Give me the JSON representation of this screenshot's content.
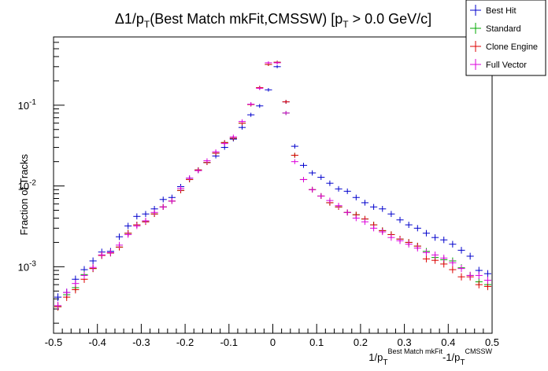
{
  "chart_data": {
    "type": "scatter",
    "title": "Δ1/p",
    "title_sub": "T",
    "title_rest": "(Best Match mkFit,CMSSW) [p",
    "title_sub2": "T",
    "title_tail": " > 0.0 GeV/c]",
    "xlabel": "1/p",
    "xlabel_sub": "T",
    "xlabel_sup": "Best Match mkFit",
    "xlabel_mid": "-1/p",
    "xlabel_sub2": "T",
    "xlabel_sup2": "CMSSW",
    "ylabel": "Fraction of Tracks",
    "xlim": [
      -0.5,
      0.5
    ],
    "ylim": [
      0.00015,
      0.7
    ],
    "yscale": "log",
    "grid": false,
    "legend_position": "top-right",
    "x_ticks": [
      -0.5,
      -0.4,
      -0.3,
      -0.2,
      -0.1,
      0,
      0.1,
      0.2,
      0.3,
      0.4,
      0.5
    ],
    "x_tick_labels": [
      "-0.5",
      "-0.4",
      "-0.3",
      "-0.2",
      "-0.1",
      "0",
      "0.1",
      "0.2",
      "0.3",
      "0.4",
      "0.5"
    ],
    "y_ticks": [
      0.001,
      0.01,
      0.1
    ],
    "y_tick_labels": [
      {
        "base": "10",
        "exp": "-3"
      },
      {
        "base": "10",
        "exp": "-2"
      },
      {
        "base": "10",
        "exp": "-1"
      }
    ],
    "bin_width": 0.02,
    "x": [
      -0.49,
      -0.47,
      -0.45,
      -0.43,
      -0.41,
      -0.39,
      -0.37,
      -0.35,
      -0.33,
      -0.31,
      -0.29,
      -0.27,
      -0.25,
      -0.23,
      -0.21,
      -0.19,
      -0.17,
      -0.15,
      -0.13,
      -0.11,
      -0.09,
      -0.07,
      -0.05,
      -0.03,
      -0.01,
      0.01,
      0.03,
      0.05,
      0.07,
      0.09,
      0.11,
      0.13,
      0.15,
      0.17,
      0.19,
      0.21,
      0.23,
      0.25,
      0.27,
      0.29,
      0.31,
      0.33,
      0.35,
      0.37,
      0.39,
      0.41,
      0.43,
      0.45,
      0.47,
      0.49
    ],
    "series": [
      {
        "name": "Best Hit",
        "color": "#0000cc",
        "values": [
          0.00042,
          0.00048,
          0.0007,
          0.00092,
          0.00118,
          0.00152,
          0.00155,
          0.00235,
          0.0032,
          0.0042,
          0.0045,
          0.0052,
          0.0068,
          0.0072,
          0.0098,
          0.0125,
          0.0155,
          0.0195,
          0.0235,
          0.03,
          0.038,
          0.053,
          0.076,
          0.098,
          0.155,
          0.3,
          0.11,
          0.031,
          0.018,
          0.0145,
          0.0128,
          0.0108,
          0.0092,
          0.0086,
          0.0072,
          0.0062,
          0.0055,
          0.0052,
          0.0045,
          0.0038,
          0.0033,
          0.003,
          0.0026,
          0.0023,
          0.00215,
          0.0019,
          0.0016,
          0.00135,
          0.0009,
          0.00082
        ]
      },
      {
        "name": "Standard",
        "color": "#00aa00",
        "values": [
          0.00032,
          0.00045,
          0.00055,
          0.0008,
          0.00095,
          0.00138,
          0.00148,
          0.00175,
          0.0026,
          0.0033,
          0.0036,
          0.0045,
          0.0055,
          0.0065,
          0.0088,
          0.012,
          0.0158,
          0.0195,
          0.0255,
          0.0345,
          0.039,
          0.06,
          0.102,
          0.165,
          0.32,
          0.34,
          0.08,
          0.024,
          0.012,
          0.009,
          0.0075,
          0.0062,
          0.0055,
          0.0047,
          0.0044,
          0.0039,
          0.0033,
          0.0028,
          0.0025,
          0.0022,
          0.002,
          0.0018,
          0.00155,
          0.0013,
          0.00122,
          0.00118,
          0.00097,
          0.00078,
          0.00065,
          0.0006
        ]
      },
      {
        "name": "Clone Engine",
        "color": "#dd0000",
        "values": [
          0.00032,
          0.00042,
          0.00052,
          0.0007,
          0.00095,
          0.00138,
          0.00148,
          0.00175,
          0.0026,
          0.0033,
          0.0036,
          0.0045,
          0.0055,
          0.0065,
          0.0088,
          0.012,
          0.0158,
          0.0195,
          0.0255,
          0.0345,
          0.039,
          0.06,
          0.102,
          0.165,
          0.32,
          0.34,
          0.11,
          0.024,
          0.012,
          0.009,
          0.0075,
          0.0062,
          0.0055,
          0.0047,
          0.0044,
          0.0039,
          0.0033,
          0.0028,
          0.0025,
          0.0022,
          0.002,
          0.0018,
          0.00125,
          0.0012,
          0.00108,
          0.00092,
          0.00075,
          0.00075,
          0.0006,
          0.00057
        ]
      },
      {
        "name": "Full Vector",
        "color": "#dd00dd",
        "values": [
          0.00033,
          0.00048,
          0.00062,
          0.00078,
          0.00098,
          0.0014,
          0.0015,
          0.00185,
          0.0025,
          0.0032,
          0.0037,
          0.0047,
          0.0055,
          0.0065,
          0.0093,
          0.0125,
          0.0155,
          0.0205,
          0.0265,
          0.0335,
          0.0405,
          0.063,
          0.103,
          0.162,
          0.335,
          0.335,
          0.08,
          0.02,
          0.012,
          0.009,
          0.0075,
          0.0066,
          0.0057,
          0.0047,
          0.004,
          0.0036,
          0.003,
          0.0027,
          0.0023,
          0.0021,
          0.0019,
          0.0017,
          0.0015,
          0.0014,
          0.00128,
          0.00112,
          0.00095,
          0.00078,
          0.00078,
          0.00068
        ]
      }
    ]
  }
}
